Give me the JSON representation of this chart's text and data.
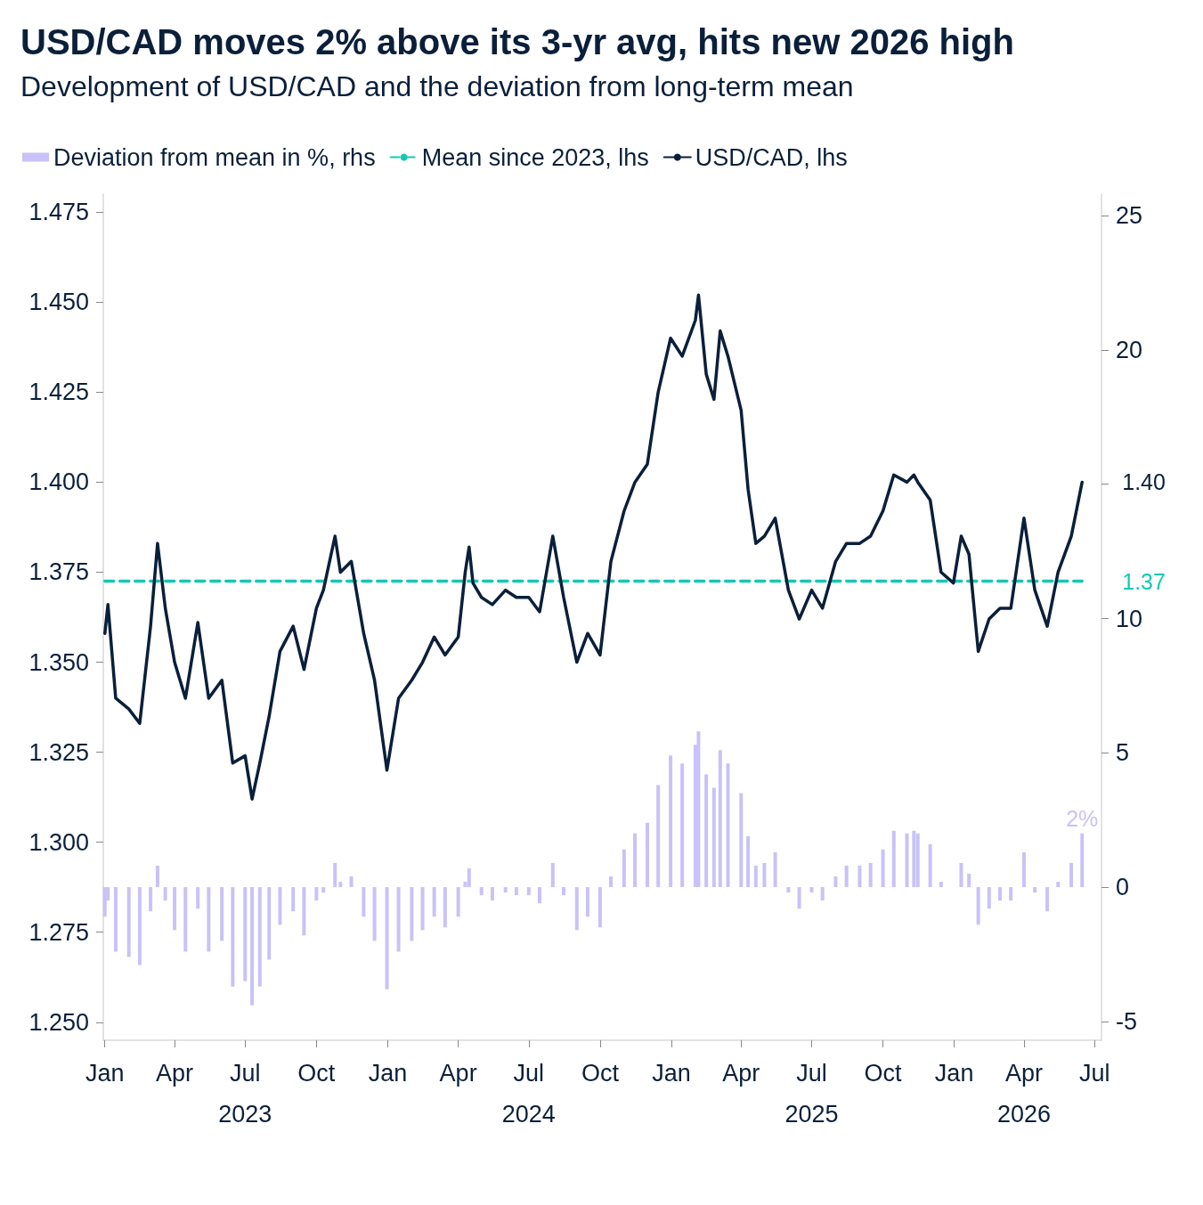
{
  "chart_data": {
    "type": "line",
    "title": "USD/CAD moves 2% above its 3-yr avg, hits new 2026 high",
    "subtitle": "Development of USD/CAD and the deviation from long-term mean",
    "x": [
      "2023-01-01",
      "2023-01-05",
      "2023-01-15",
      "2023-02-01",
      "2023-02-15",
      "2023-03-01",
      "2023-03-10",
      "2023-03-20",
      "2023-04-01",
      "2023-04-15",
      "2023-05-01",
      "2023-05-15",
      "2023-06-01",
      "2023-06-15",
      "2023-07-01",
      "2023-07-10",
      "2023-07-20",
      "2023-08-01",
      "2023-08-15",
      "2023-09-01",
      "2023-09-15",
      "2023-10-01",
      "2023-10-10",
      "2023-10-25",
      "2023-11-01",
      "2023-11-15",
      "2023-12-01",
      "2023-12-15",
      "2023-12-31",
      "2024-01-15",
      "2024-02-01",
      "2024-02-15",
      "2024-03-01",
      "2024-03-15",
      "2024-04-01",
      "2024-04-10",
      "2024-04-15",
      "2024-04-20",
      "2024-05-01",
      "2024-05-15",
      "2024-06-01",
      "2024-06-15",
      "2024-07-01",
      "2024-07-15",
      "2024-08-01",
      "2024-08-15",
      "2024-09-01",
      "2024-09-15",
      "2024-10-01",
      "2024-10-15",
      "2024-11-01",
      "2024-11-15",
      "2024-12-01",
      "2024-12-15",
      "2024-12-31",
      "2025-01-15",
      "2025-02-01",
      "2025-02-05",
      "2025-02-15",
      "2025-02-25",
      "2025-03-05",
      "2025-03-15",
      "2025-04-01",
      "2025-04-10",
      "2025-04-20",
      "2025-05-01",
      "2025-05-15",
      "2025-06-01",
      "2025-06-15",
      "2025-07-01",
      "2025-07-15",
      "2025-08-01",
      "2025-08-15",
      "2025-09-01",
      "2025-09-15",
      "2025-10-01",
      "2025-10-15",
      "2025-11-01",
      "2025-11-10",
      "2025-11-15",
      "2025-12-01",
      "2025-12-15",
      "2025-12-31",
      "2026-01-10",
      "2026-01-20",
      "2026-02-01",
      "2026-02-15",
      "2026-03-01",
      "2026-03-15",
      "2026-04-01",
      "2026-04-15",
      "2026-05-01",
      "2026-05-15",
      "2026-06-01",
      "2026-06-15"
    ],
    "series": [
      {
        "name": "Deviation from mean in %, rhs",
        "type": "bar",
        "axis": "y2",
        "color": "#c9c2f8",
        "values": [
          -1.1,
          -0.5,
          -2.4,
          -2.6,
          -2.9,
          -0.9,
          0.8,
          -0.5,
          -1.6,
          -2.4,
          -0.8,
          -2.4,
          -2.0,
          -3.7,
          -3.5,
          -4.4,
          -3.7,
          -2.7,
          -1.4,
          -0.9,
          -1.8,
          -0.5,
          -0.2,
          0.9,
          0.2,
          0.4,
          -1.1,
          -2.0,
          -3.8,
          -2.4,
          -2.0,
          -1.6,
          -1.1,
          -1.5,
          -1.1,
          0.2,
          0.7,
          0.0,
          -0.3,
          -0.5,
          -0.2,
          -0.3,
          -0.3,
          -0.6,
          0.9,
          -0.3,
          -1.6,
          -1.1,
          -1.5,
          0.4,
          1.4,
          2.0,
          2.4,
          3.8,
          4.9,
          4.6,
          5.3,
          5.8,
          4.2,
          3.7,
          5.1,
          4.6,
          3.5,
          1.9,
          0.8,
          0.9,
          1.3,
          -0.2,
          -0.8,
          -0.2,
          -0.5,
          0.4,
          0.8,
          0.8,
          0.9,
          1.4,
          2.1,
          2.0,
          2.1,
          2.0,
          1.6,
          0.2,
          0.0,
          0.9,
          0.5,
          -1.4,
          -0.8,
          -0.5,
          -0.5,
          1.3,
          -0.2,
          -0.9,
          0.2,
          0.9,
          2.0
        ],
        "value_labels": [
          null,
          null,
          null,
          null,
          null,
          null,
          null,
          null,
          null,
          null,
          null,
          null,
          null,
          null,
          null,
          null,
          null,
          null,
          null,
          null,
          null,
          null,
          null,
          null,
          null,
          null,
          null,
          null,
          null,
          null,
          null,
          null,
          null,
          null,
          null,
          null,
          null,
          null,
          null,
          null,
          null,
          null,
          null,
          null,
          null,
          null,
          null,
          null,
          null,
          null,
          null,
          null,
          null,
          null,
          null,
          null,
          null,
          null,
          null,
          null,
          null,
          null,
          null,
          null,
          null,
          null,
          null,
          null,
          null,
          null,
          null,
          null,
          null,
          null,
          null,
          null,
          null,
          null,
          null,
          null,
          null,
          null,
          null,
          null,
          null,
          null,
          null,
          null,
          null,
          null,
          null,
          null,
          null,
          null,
          "2%"
        ]
      },
      {
        "name": "Mean since 2023, lhs",
        "line_style": "dashed",
        "color": "#14c8b4",
        "x": [
          "2023-01-01",
          "2026-06-15"
        ],
        "values": [
          1.3725,
          1.3725
        ],
        "value_labels": [
          null,
          "1.37"
        ]
      },
      {
        "name": "USD/CAD, lhs",
        "line_style": "solid",
        "color": "#0a1f3a",
        "values": [
          1.358,
          1.366,
          1.34,
          1.337,
          1.333,
          1.36,
          1.383,
          1.365,
          1.35,
          1.34,
          1.361,
          1.34,
          1.345,
          1.322,
          1.324,
          1.312,
          1.322,
          1.335,
          1.353,
          1.36,
          1.348,
          1.365,
          1.37,
          1.385,
          1.375,
          1.378,
          1.358,
          1.345,
          1.32,
          1.34,
          1.345,
          1.35,
          1.357,
          1.352,
          1.357,
          1.375,
          1.382,
          1.372,
          1.368,
          1.366,
          1.37,
          1.368,
          1.368,
          1.364,
          1.385,
          1.368,
          1.35,
          1.358,
          1.352,
          1.378,
          1.392,
          1.4,
          1.405,
          1.425,
          1.44,
          1.435,
          1.445,
          1.452,
          1.43,
          1.423,
          1.442,
          1.435,
          1.42,
          1.398,
          1.383,
          1.385,
          1.39,
          1.37,
          1.362,
          1.37,
          1.365,
          1.378,
          1.383,
          1.383,
          1.385,
          1.392,
          1.402,
          1.4,
          1.402,
          1.4,
          1.395,
          1.375,
          1.372,
          1.385,
          1.38,
          1.353,
          1.362,
          1.365,
          1.365,
          1.39,
          1.37,
          1.36,
          1.375,
          1.385,
          1.4
        ],
        "value_labels": [
          null,
          null,
          null,
          null,
          null,
          null,
          null,
          null,
          null,
          null,
          null,
          null,
          null,
          null,
          null,
          null,
          null,
          null,
          null,
          null,
          null,
          null,
          null,
          null,
          null,
          null,
          null,
          null,
          null,
          null,
          null,
          null,
          null,
          null,
          null,
          null,
          null,
          null,
          null,
          null,
          null,
          null,
          null,
          null,
          null,
          null,
          null,
          null,
          null,
          null,
          null,
          null,
          null,
          null,
          null,
          null,
          null,
          null,
          null,
          null,
          null,
          null,
          null,
          null,
          null,
          null,
          null,
          null,
          null,
          null,
          null,
          null,
          null,
          null,
          null,
          null,
          null,
          null,
          null,
          null,
          null,
          null,
          null,
          null,
          null,
          null,
          null,
          null,
          null,
          null,
          null,
          null,
          null,
          null,
          "1.40"
        ]
      }
    ],
    "xlim": [
      "2022-12-30",
      "2026-07-10"
    ],
    "xticks": [
      {
        "value": "2023-01-01",
        "label": "Jan"
      },
      {
        "value": "2023-04-01",
        "label": "Apr"
      },
      {
        "value": "2023-07-01",
        "label": "Jul\n2023"
      },
      {
        "value": "2023-10-01",
        "label": "Oct"
      },
      {
        "value": "2024-01-01",
        "label": "Jan"
      },
      {
        "value": "2024-04-01",
        "label": "Apr"
      },
      {
        "value": "2024-07-01",
        "label": "Jul\n2024"
      },
      {
        "value": "2024-10-01",
        "label": "Oct"
      },
      {
        "value": "2025-01-01",
        "label": "Jan"
      },
      {
        "value": "2025-04-01",
        "label": "Apr"
      },
      {
        "value": "2025-07-01",
        "label": "Jul\n2025"
      },
      {
        "value": "2025-10-01",
        "label": "Oct"
      },
      {
        "value": "2026-01-01",
        "label": "Jan"
      },
      {
        "value": "2026-04-01",
        "label": "Apr\n2026"
      },
      {
        "value": "2026-07-01",
        "label": "Jul"
      }
    ],
    "ylim": [
      1.245,
      1.48
    ],
    "yticks": [
      {
        "value": 1.25,
        "label": "1.250"
      },
      {
        "value": 1.275,
        "label": "1.275"
      },
      {
        "value": 1.3,
        "label": "1.300"
      },
      {
        "value": 1.325,
        "label": "1.325"
      },
      {
        "value": 1.35,
        "label": "1.350"
      },
      {
        "value": 1.375,
        "label": "1.375"
      },
      {
        "value": 1.4,
        "label": "1.400"
      },
      {
        "value": 1.425,
        "label": "1.425"
      },
      {
        "value": 1.45,
        "label": "1.450"
      },
      {
        "value": 1.475,
        "label": "1.475"
      }
    ],
    "y2lim": [
      -5.7,
      25.8
    ],
    "y2ticks": [
      -5,
      0,
      5,
      10,
      {
        "value": 15,
        "label": null
      },
      20,
      25
    ],
    "grid": false,
    "marker": "none",
    "legend": "top left"
  }
}
